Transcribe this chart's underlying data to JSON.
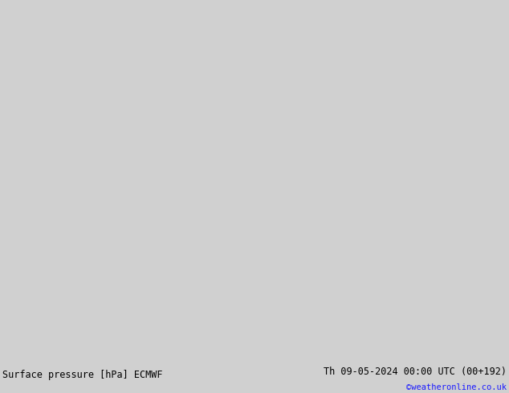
{
  "title_left": "Surface pressure [hPa] ECMWF",
  "title_right": "Th 09-05-2024 00:00 UTC (00+192)",
  "credit": "©weatheronline.co.uk",
  "sea_color": "#d0d0d0",
  "land_green_color": "#c8f07a",
  "border_color": "#a0a0a0",
  "contour_color": "#ff0000",
  "contour_linewidth": 1.2,
  "label_fontsize": 7,
  "footer_bg": "#cce890",
  "footer_fontsize": 8.5,
  "credit_fontsize": 7.5,
  "credit_color": "#1a1aff",
  "figsize": [
    6.34,
    4.9
  ],
  "dpi": 100,
  "lon_min": -6,
  "lon_max": 16,
  "lat_min": 46,
  "lat_max": 58
}
